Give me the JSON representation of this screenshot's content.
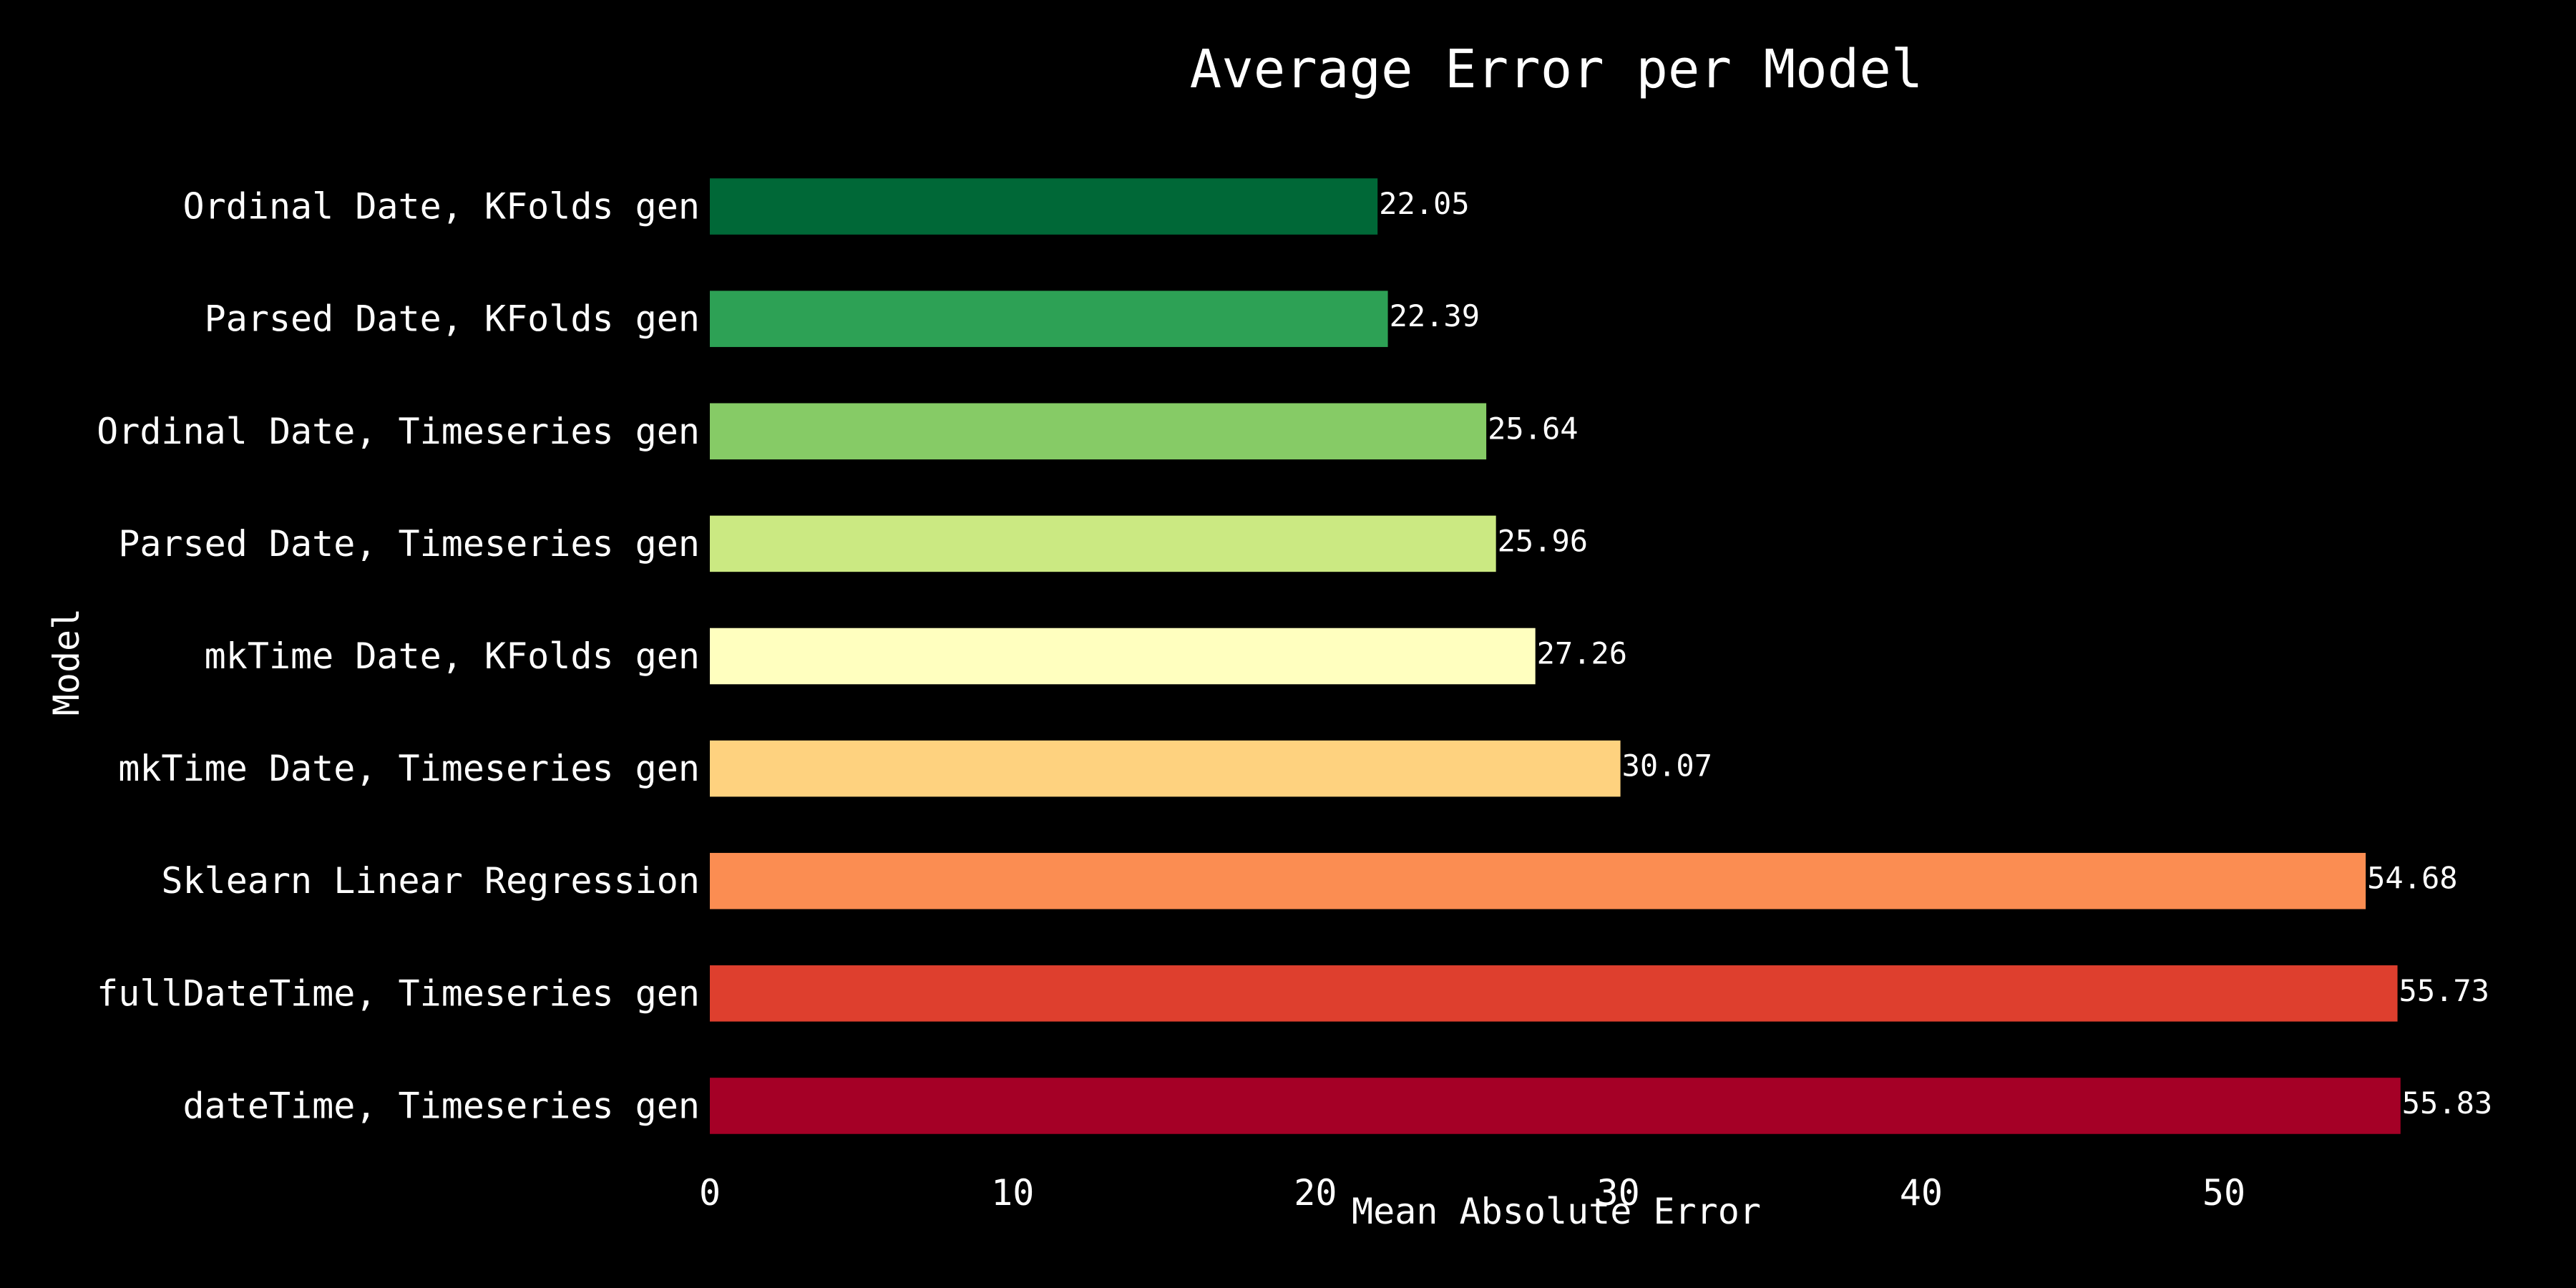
{
  "chart_data": {
    "type": "bar",
    "orientation": "horizontal",
    "title": "Average Error per Model",
    "xlabel": "Mean Absolute Error",
    "ylabel": "Model",
    "xlim": [
      0,
      58.6
    ],
    "xticks": [
      0,
      10,
      20,
      30,
      40,
      50
    ],
    "grid": false,
    "categories": [
      "dateTime, Timeseries gen",
      "fullDateTime, Timeseries gen",
      "Sklearn Linear Regression",
      "mkTime Date, Timeseries gen",
      "mkTime Date, KFolds gen",
      "Parsed Date, Timeseries gen",
      "Ordinal Date, Timeseries gen",
      "Parsed Date, KFolds gen",
      "Ordinal Date, KFolds gen"
    ],
    "values": [
      55.83,
      55.73,
      54.68,
      30.07,
      27.26,
      25.96,
      25.64,
      22.39,
      22.05
    ],
    "value_labels": [
      "55.83",
      "55.73",
      "54.68",
      "30.07",
      "27.26",
      "25.96",
      "25.64",
      "22.39",
      "22.05"
    ],
    "colors": [
      "#a50026",
      "#de3f2e",
      "#fb8d52",
      "#fed27f",
      "#ffffbf",
      "#cbe982",
      "#86cb66",
      "#2da155",
      "#006837"
    ]
  }
}
